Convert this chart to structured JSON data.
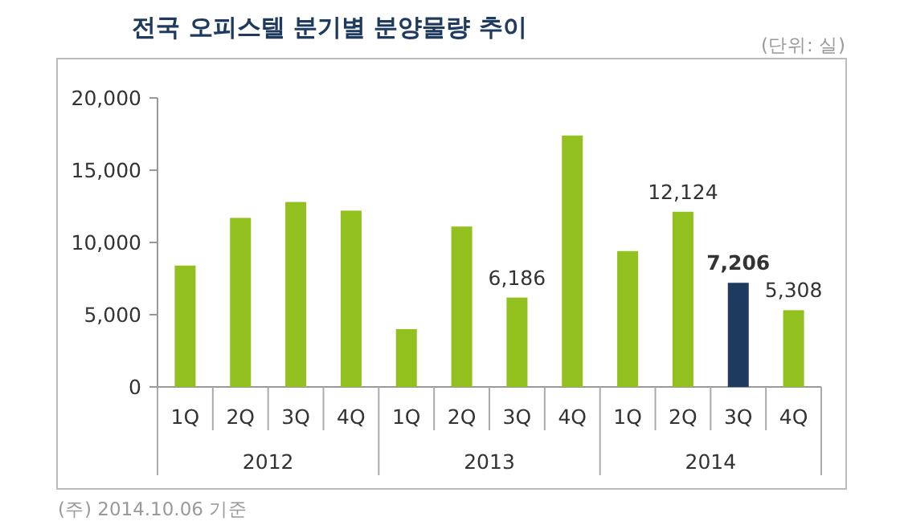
{
  "chart_data": {
    "type": "bar",
    "title": "전국 오피스텔 분기별 분양물량 추이",
    "categories": [
      "1Q",
      "2Q",
      "3Q",
      "4Q",
      "1Q",
      "2Q",
      "3Q",
      "4Q",
      "1Q",
      "2Q",
      "3Q",
      "4Q"
    ],
    "values": [
      8400,
      11700,
      12800,
      12200,
      4000,
      11100,
      6186,
      17400,
      9400,
      12124,
      7206,
      5308
    ],
    "colors": [
      "#92c01f",
      "#92c01f",
      "#92c01f",
      "#92c01f",
      "#92c01f",
      "#92c01f",
      "#92c01f",
      "#92c01f",
      "#92c01f",
      "#92c01f",
      "#1f3a5f",
      "#92c01f"
    ],
    "value_labels": [
      null,
      null,
      null,
      null,
      null,
      null,
      "6,186",
      null,
      null,
      "12,124",
      "7,206",
      "5,308"
    ],
    "ylim": [
      0,
      20000
    ],
    "yticks": [
      {
        "value": 0,
        "label": "0"
      },
      {
        "value": 5000,
        "label": "5,000"
      },
      {
        "value": 10000,
        "label": "10,000"
      },
      {
        "value": 15000,
        "label": "15,000"
      },
      {
        "value": 20000,
        "label": "20,000"
      }
    ],
    "grid": false,
    "annotations": [
      "(단위: 실)",
      "2012",
      "2013",
      "2014",
      "(주) 2014.10.06 기준"
    ]
  }
}
